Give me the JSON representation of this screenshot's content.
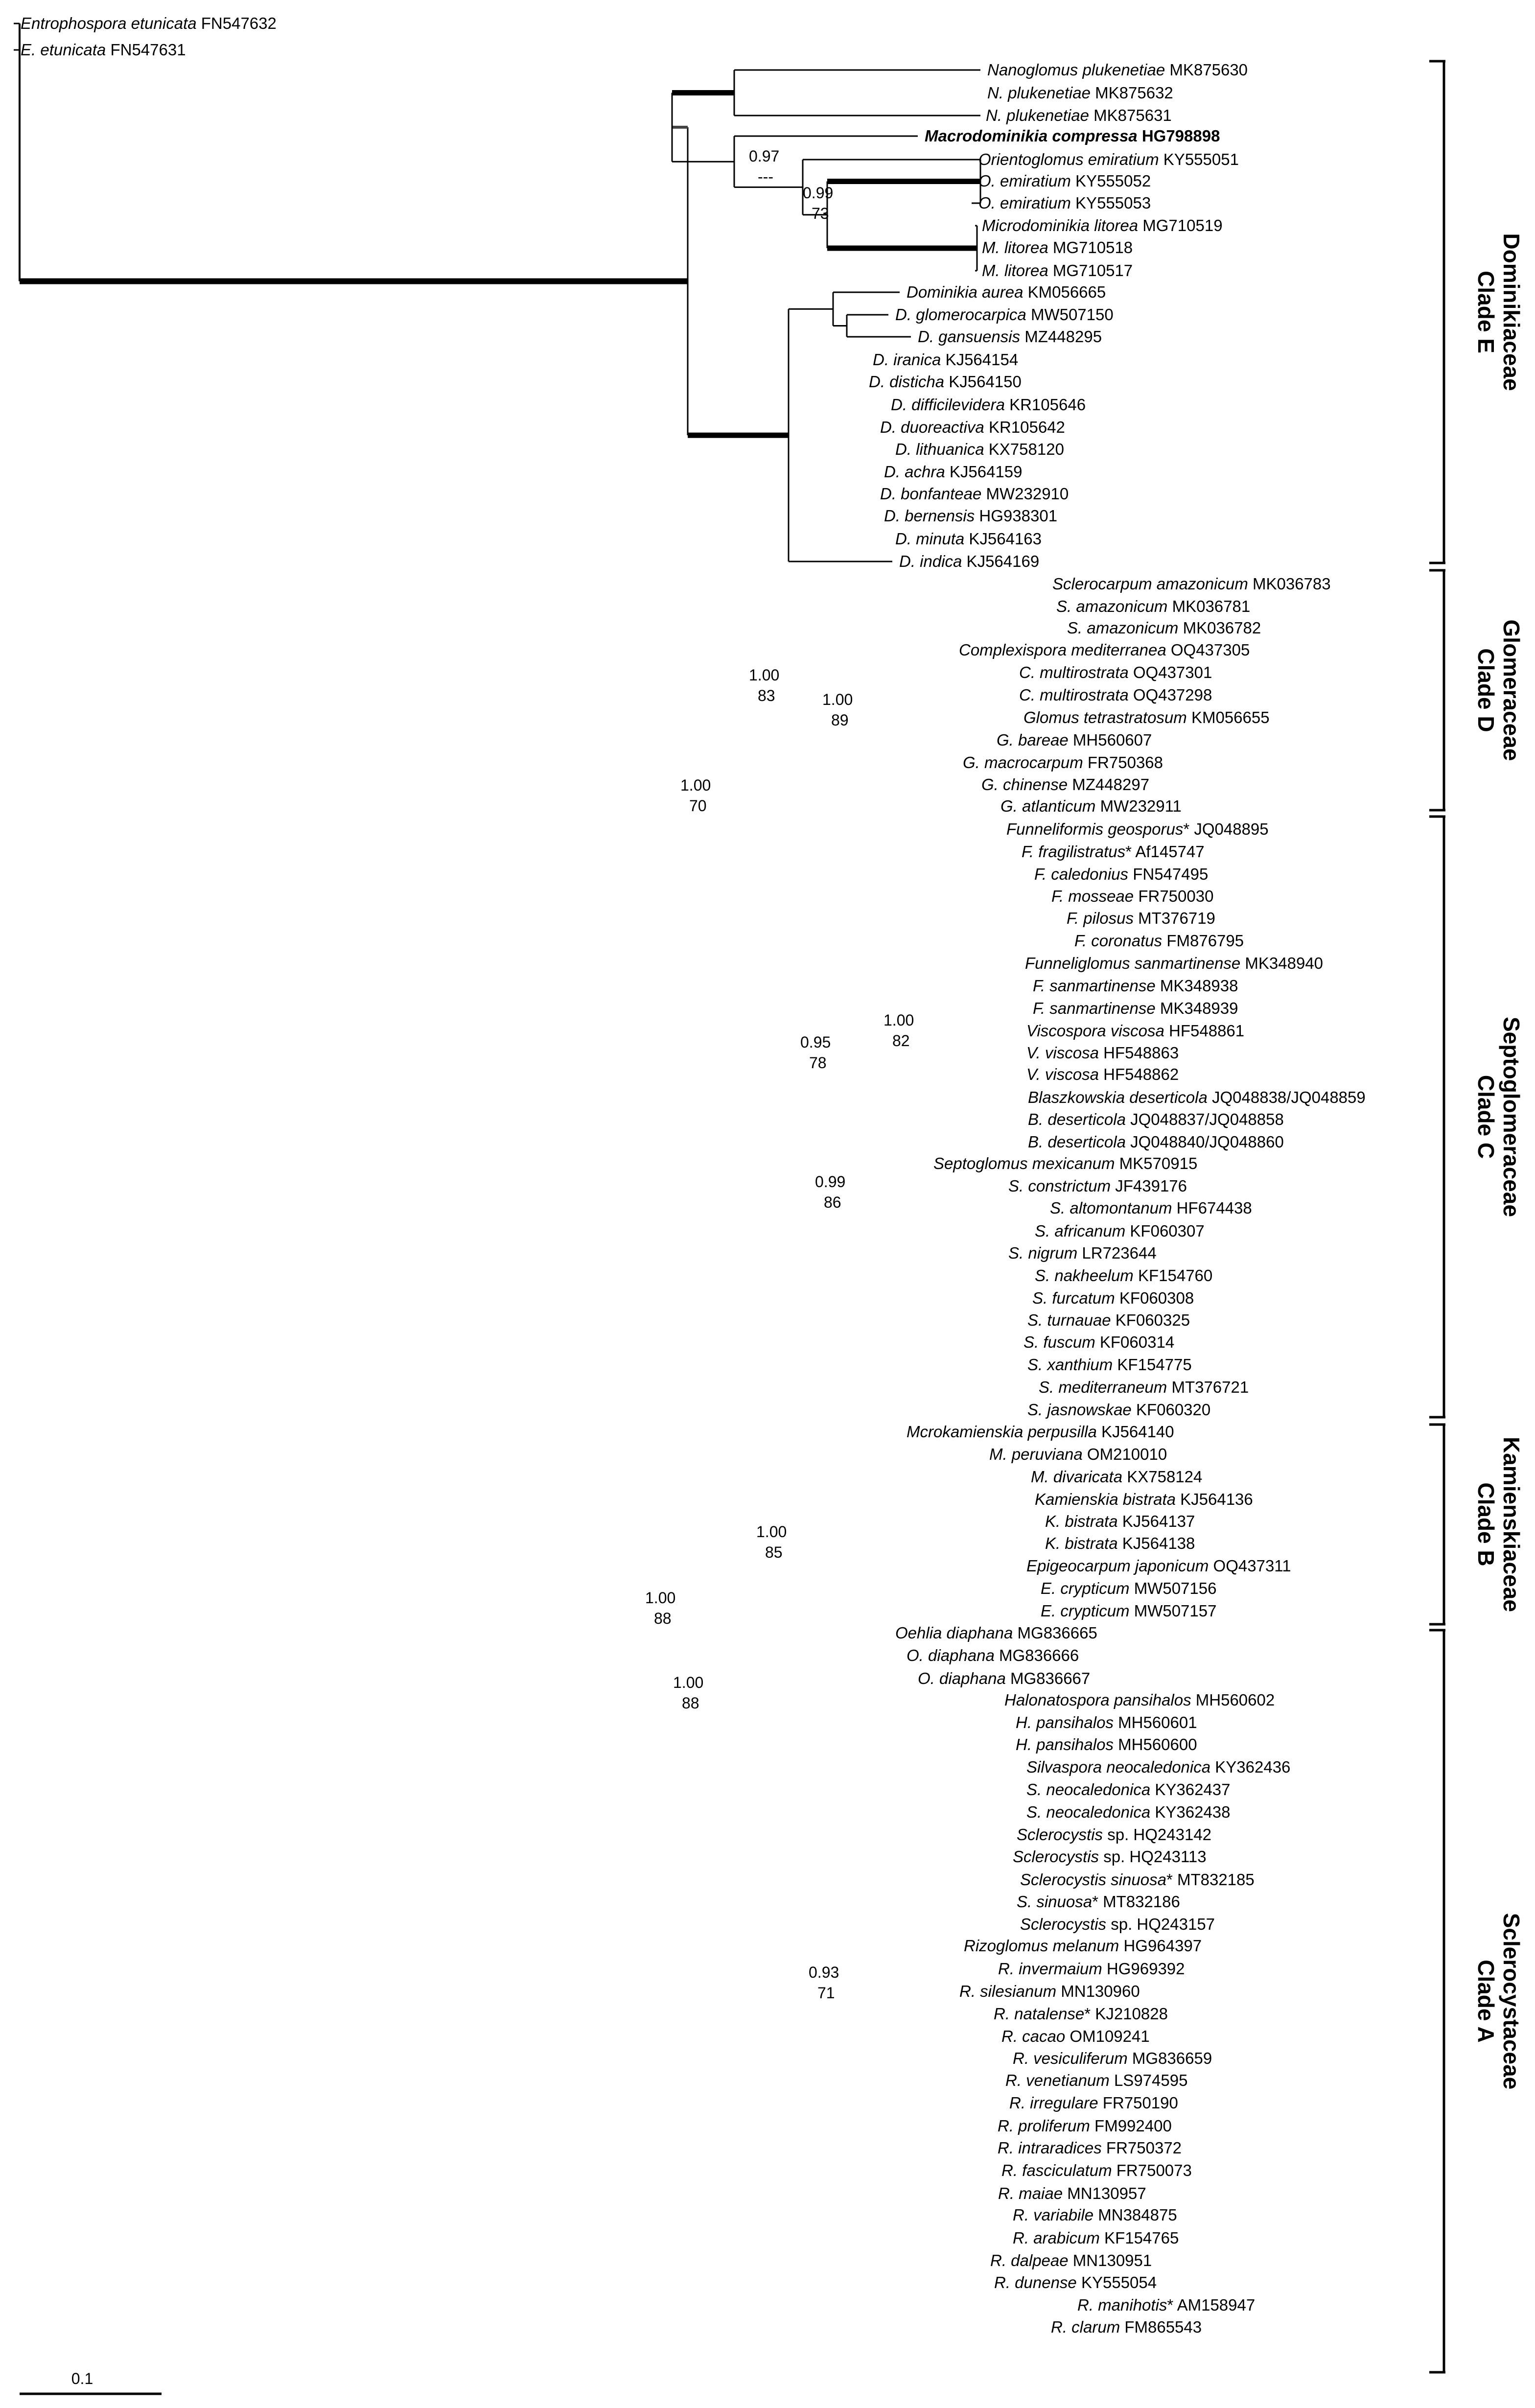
{
  "tips": [
    {
      "genus": "Entrophospora etunicata",
      "acc": " FN547632"
    },
    {
      "genus": "E. etunicata",
      "acc": " FN547631"
    },
    {
      "genus": "Nanoglomus plukenetiae",
      "acc": " MK875630"
    },
    {
      "genus": "N. plukenetiae",
      "acc": " MK875632"
    },
    {
      "genus": "N. plukenetiae",
      "acc": " MK875631"
    },
    {
      "genus": "Macrodominikia compressa",
      "acc": " HG798898",
      "bold": true
    },
    {
      "genus": "Orientoglomus emiratium",
      "acc": " KY555051"
    },
    {
      "genus": "O. emiratium",
      "acc": " KY555052"
    },
    {
      "genus": "O. emiratium",
      "acc": " KY555053"
    },
    {
      "genus": "Microdominikia litorea",
      "acc": " MG710519"
    },
    {
      "genus": "M. litorea",
      "acc": " MG710518"
    },
    {
      "genus": "M. litorea",
      "acc": " MG710517"
    },
    {
      "genus": "Dominikia aurea",
      "acc": " KM056665"
    },
    {
      "genus": "D. glomerocarpica",
      "acc": " MW507150"
    },
    {
      "genus": "D. gansuensis",
      "acc": " MZ448295"
    },
    {
      "genus": "D. iranica",
      "acc": " KJ564154"
    },
    {
      "genus": "D. disticha",
      "acc": " KJ564150"
    },
    {
      "genus": "D. difficilevidera",
      "acc": " KR105646"
    },
    {
      "genus": "D. duoreactiva",
      "acc": " KR105642"
    },
    {
      "genus": "D. lithuanica",
      "acc": " KX758120"
    },
    {
      "genus": "D. achra",
      "acc": " KJ564159"
    },
    {
      "genus": "D. bonfanteae",
      "acc": " MW232910"
    },
    {
      "genus": "D. bernensis",
      "acc": " HG938301"
    },
    {
      "genus": "D. minuta",
      "acc": " KJ564163"
    },
    {
      "genus": "D. indica",
      "acc": " KJ564169"
    },
    {
      "genus": "Sclerocarpum amazonicum",
      "acc": " MK036783"
    },
    {
      "genus": "S. amazonicum",
      "acc": " MK036781"
    },
    {
      "genus": "S. amazonicum",
      "acc": " MK036782"
    },
    {
      "genus": "Complexispora mediterranea",
      "acc": " OQ437305"
    },
    {
      "genus": "C. multirostrata",
      "acc": " OQ437301"
    },
    {
      "genus": "C. multirostrata",
      "acc": " OQ437298"
    },
    {
      "genus": "Glomus tetrastratosum",
      "acc": " KM056655"
    },
    {
      "genus": "G. bareae",
      "acc": " MH560607"
    },
    {
      "genus": "G. macrocarpum",
      "acc": " FR750368"
    },
    {
      "genus": "G. chinense",
      "acc": " MZ448297"
    },
    {
      "genus": "G. atlanticum",
      "acc": " MW232911"
    },
    {
      "genus": "Funneliformis geosporus",
      "acc": "* JQ048895"
    },
    {
      "genus": "F. fragilistratus",
      "acc": "* Af145747"
    },
    {
      "genus": "F. caledonius",
      "acc": " FN547495"
    },
    {
      "genus": "F. mosseae",
      "acc": " FR750030"
    },
    {
      "genus": "F. pilosus",
      "acc": " MT376719"
    },
    {
      "genus": "F. coronatus",
      "acc": " FM876795"
    },
    {
      "genus": "Funneliglomus sanmartinense",
      "acc": " MK348940"
    },
    {
      "genus": "F. sanmartinense",
      "acc": " MK348938"
    },
    {
      "genus": "F. sanmartinense",
      "acc": " MK348939"
    },
    {
      "genus": "Viscospora viscosa",
      "acc": " HF548861"
    },
    {
      "genus": "V. viscosa",
      "acc": " HF548863"
    },
    {
      "genus": "V. viscosa",
      "acc": " HF548862"
    },
    {
      "genus": "Blaszkowskia deserticola",
      "acc": " JQ048838/JQ048859"
    },
    {
      "genus": "B. deserticola",
      "acc": " JQ048837/JQ048858"
    },
    {
      "genus": "B. deserticola",
      "acc": " JQ048840/JQ048860"
    },
    {
      "genus": "Septoglomus mexicanum",
      "acc": " MK570915"
    },
    {
      "genus": "S. constrictum",
      "acc": " JF439176"
    },
    {
      "genus": "S. altomontanum",
      "acc": " HF674438"
    },
    {
      "genus": "S. africanum",
      "acc": " KF060307"
    },
    {
      "genus": "S. nigrum",
      "acc": " LR723644"
    },
    {
      "genus": "S. nakheelum",
      "acc": " KF154760"
    },
    {
      "genus": "S. furcatum",
      "acc": " KF060308"
    },
    {
      "genus": "S. turnauae",
      "acc": " KF060325"
    },
    {
      "genus": "S. fuscum",
      "acc": " KF060314"
    },
    {
      "genus": "S. xanthium",
      "acc": " KF154775"
    },
    {
      "genus": "S. mediterraneum",
      "acc": " MT376721"
    },
    {
      "genus": "S. jasnowskae",
      "acc": " KF060320"
    },
    {
      "genus": "Mcrokamienskia perpusilla",
      "acc": " KJ564140"
    },
    {
      "genus": "M. peruviana",
      "acc": " OM210010"
    },
    {
      "genus": "M. divaricata",
      "acc": " KX758124"
    },
    {
      "genus": "Kamienskia bistrata",
      "acc": " KJ564136"
    },
    {
      "genus": "K. bistrata",
      "acc": " KJ564137"
    },
    {
      "genus": "K. bistrata",
      "acc": " KJ564138"
    },
    {
      "genus": "Epigeocarpum japonicum",
      "acc": " OQ437311"
    },
    {
      "genus": "E. crypticum",
      "acc": " MW507156"
    },
    {
      "genus": "E. crypticum",
      "acc": " MW507157"
    },
    {
      "genus": "Oehlia diaphana",
      "acc": " MG836665"
    },
    {
      "genus": "O. diaphana",
      "acc": " MG836666"
    },
    {
      "genus": "O. diaphana",
      "acc": " MG836667"
    },
    {
      "genus": "Halonatospora pansihalos",
      "acc": " MH560602"
    },
    {
      "genus": "H. pansihalos",
      "acc": " MH560601"
    },
    {
      "genus": "H. pansihalos",
      "acc": " MH560600"
    },
    {
      "genus": "Silvaspora neocaledonica",
      "acc": " KY362436"
    },
    {
      "genus": "S. neocaledonica",
      "acc": " KY362437"
    },
    {
      "genus": "S. neocaledonica",
      "acc": " KY362438"
    },
    {
      "genus": "Sclerocystis",
      "acc": " sp. HQ243142"
    },
    {
      "genus": "Sclerocystis",
      "acc": " sp. HQ243113"
    },
    {
      "genus": "Sclerocystis sinuosa",
      "acc": "* MT832185"
    },
    {
      "genus": "S. sinuosa",
      "acc": "* MT832186"
    },
    {
      "genus": "Sclerocystis",
      "acc": " sp. HQ243157"
    },
    {
      "genus": "Rizoglomus melanum",
      "acc": " HG964397"
    },
    {
      "genus": "R. invermaium",
      "acc": " HG969392"
    },
    {
      "genus": "R. silesianum",
      "acc": " MN130960"
    },
    {
      "genus": "R. natalense",
      "acc": "* KJ210828"
    },
    {
      "genus": "R. cacao",
      "acc": " OM109241"
    },
    {
      "genus": "R. vesiculiferum",
      "acc": " MG836659"
    },
    {
      "genus": "R. venetianum",
      "acc": " LS974595"
    },
    {
      "genus": "R. irregulare",
      "acc": " FR750190"
    },
    {
      "genus": "R. proliferum",
      "acc": " FM992400"
    },
    {
      "genus": "R. intraradices",
      "acc": " FR750372"
    },
    {
      "genus": "R. fasciculatum",
      "acc": " FR750073"
    },
    {
      "genus": "R. maiae",
      "acc": " MN130957"
    },
    {
      "genus": "R. variabile",
      "acc": " MN384875"
    },
    {
      "genus": "R. arabicum",
      "acc": " KF154765"
    },
    {
      "genus": "R. dalpeae",
      "acc": " MN130951"
    },
    {
      "genus": "R. dunense",
      "acc": " KY555054"
    },
    {
      "genus": "R. manihotis",
      "acc": "* AM158947"
    },
    {
      "genus": "R. clarum",
      "acc": " FM865543"
    }
  ],
  "support": [
    {
      "post": "0.97",
      "boot": "---"
    },
    {
      "post": "0.99",
      "boot": "73"
    },
    {
      "post": "1.00",
      "boot": "83"
    },
    {
      "post": "1.00",
      "boot": "89"
    },
    {
      "post": "1.00",
      "boot": "70"
    },
    {
      "post": "0.95",
      "boot": "78"
    },
    {
      "post": "1.00",
      "boot": "82"
    },
    {
      "post": "0.99",
      "boot": "86"
    },
    {
      "post": "1.00",
      "boot": "85"
    },
    {
      "post": "1.00",
      "boot": "88"
    },
    {
      "post": "1.00",
      "boot": "88"
    },
    {
      "post": "0.93",
      "boot": "71"
    }
  ],
  "clades": [
    {
      "clade": "Clade E",
      "family": "Dominikiaceae"
    },
    {
      "clade": "Clade D",
      "family": "Glomeraceae"
    },
    {
      "clade": "Clade C",
      "family": "Septoglomeraceae"
    },
    {
      "clade": "Clade B",
      "family": "Kamienskiaceae"
    },
    {
      "clade": "Clade A",
      "family": "Sclerocystaceae"
    }
  ],
  "scale_bar": {
    "label": "0.1"
  },
  "colors": {
    "line": "#000000",
    "grey_branch": "#444444"
  }
}
